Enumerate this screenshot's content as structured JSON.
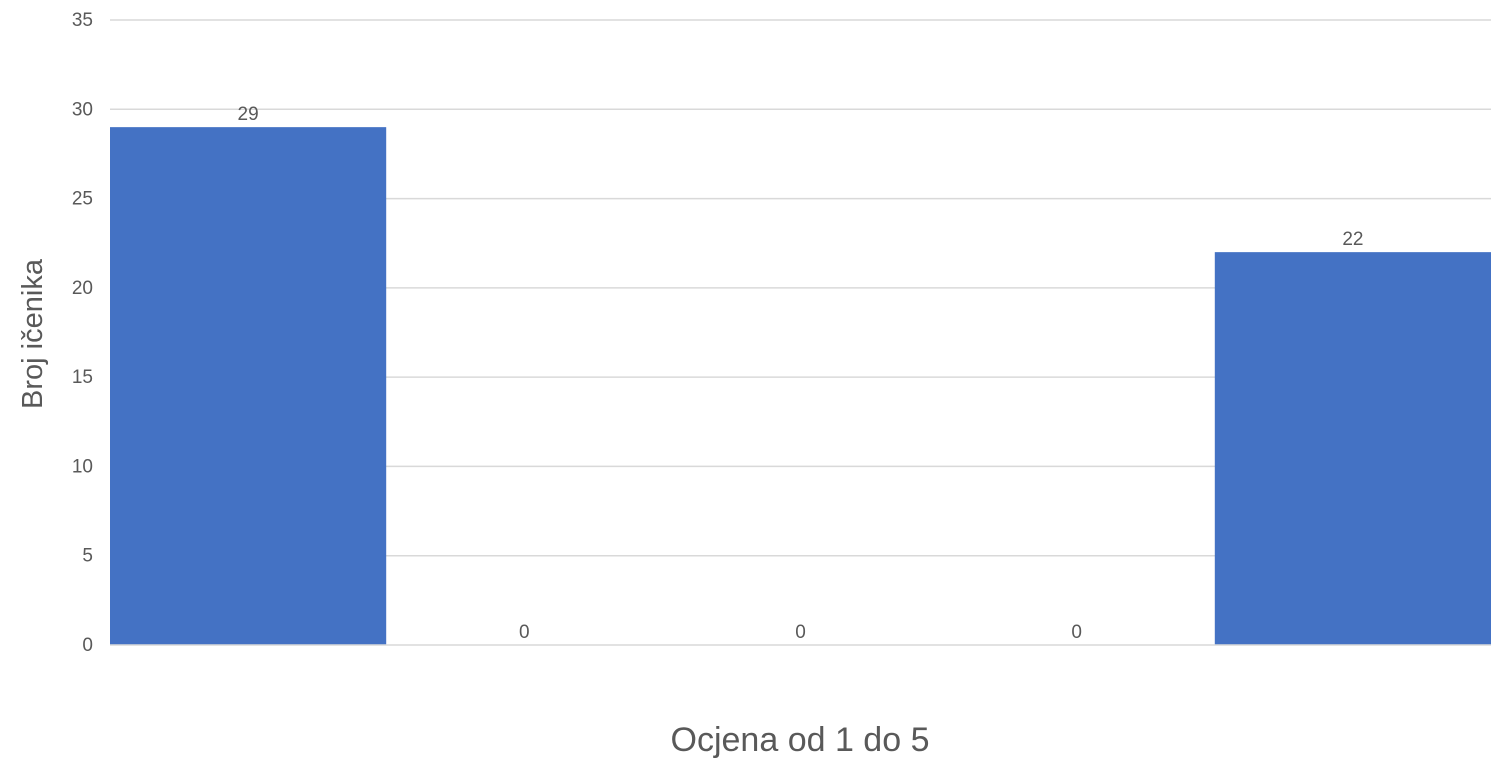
{
  "chart_data": {
    "type": "bar",
    "title": "",
    "xlabel": "Ocjena od 1 do 5",
    "ylabel": "Broj ičenika",
    "categories": [
      "",
      "",
      "",
      "",
      ""
    ],
    "values": [
      29,
      0,
      0,
      0,
      22
    ],
    "data_labels": [
      "29",
      "0",
      "0",
      "0",
      "22"
    ],
    "ylim": [
      0,
      35
    ],
    "yticks": [
      0,
      5,
      10,
      15,
      20,
      25,
      30,
      35
    ],
    "grid": true,
    "legend": "none",
    "bar_color": "#4472C4"
  }
}
